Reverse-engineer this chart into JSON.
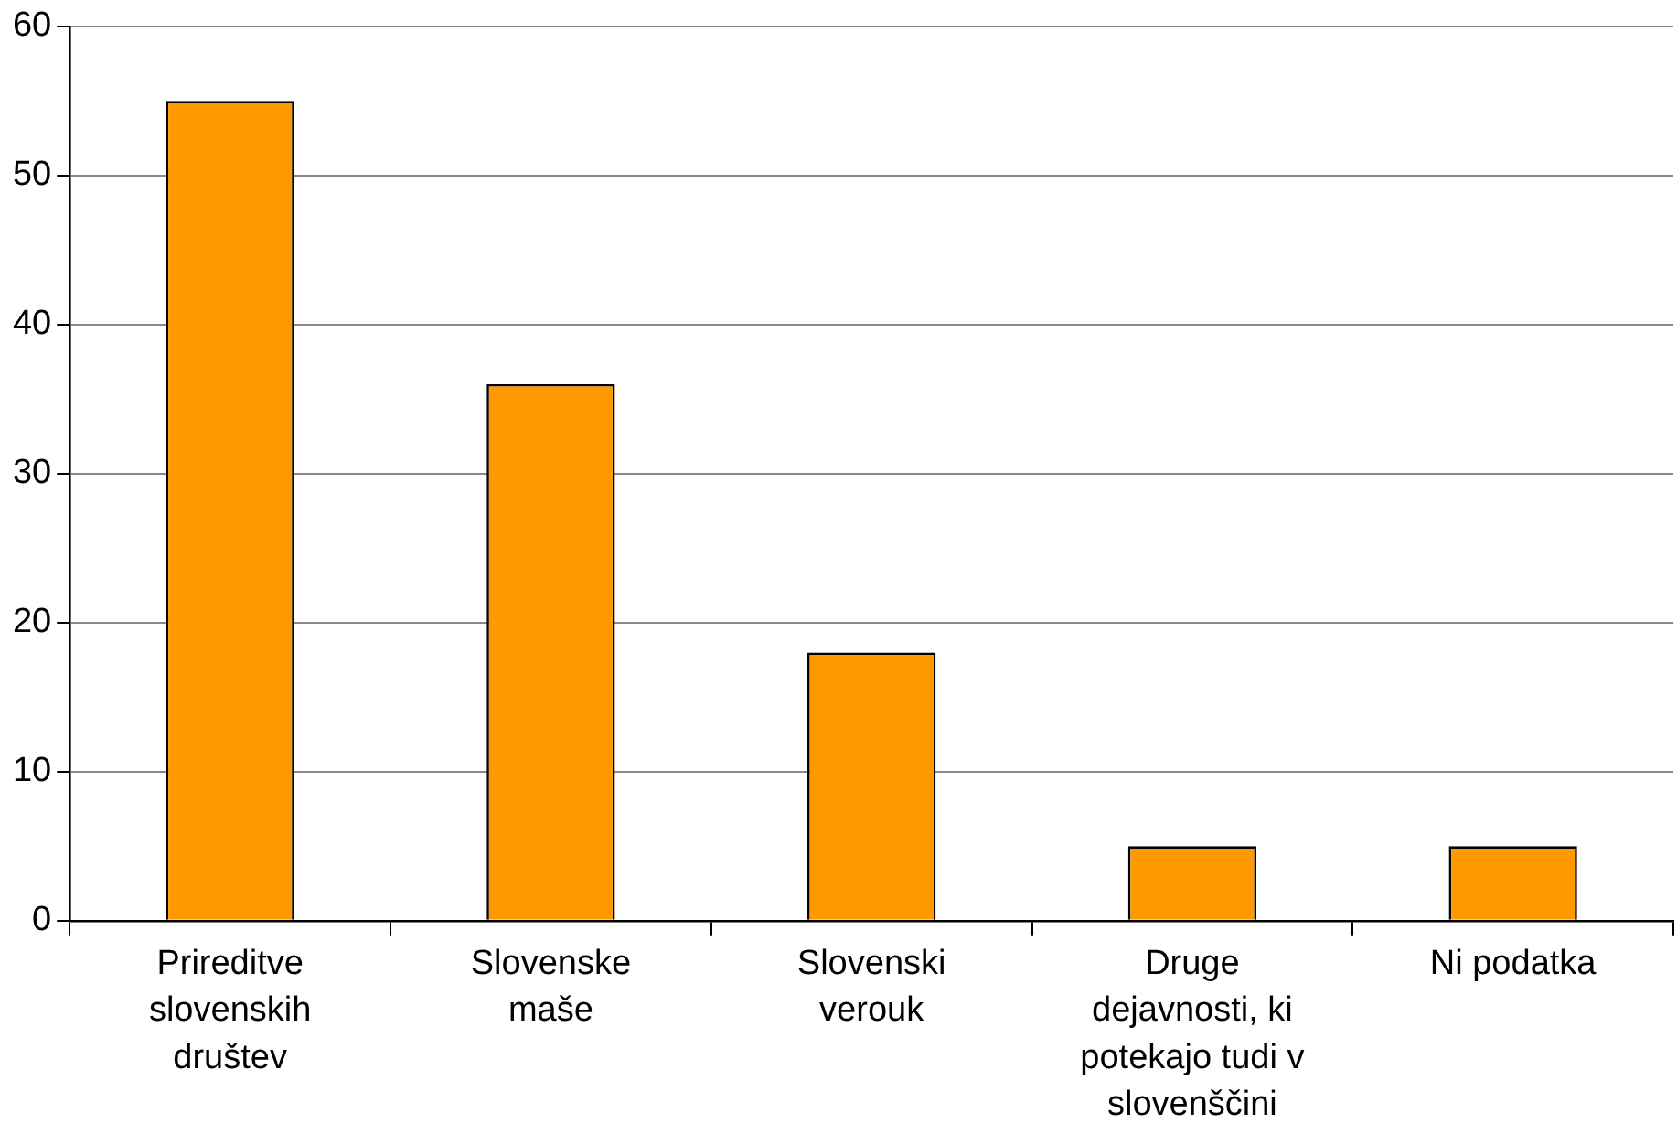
{
  "chart_data": {
    "type": "bar",
    "categories": [
      "Prireditve slovenskih društev",
      "Slovenske maše",
      "Slovenski verouk",
      "Druge dejavnosti, ki potekajo tudi v slovenščini",
      "Ni podatka"
    ],
    "values": [
      55,
      36,
      18,
      5,
      5
    ],
    "color": "#ff9900",
    "ylim": [
      0,
      60
    ],
    "yticks": [
      0,
      10,
      20,
      30,
      40,
      50,
      60
    ],
    "grid": "y"
  }
}
